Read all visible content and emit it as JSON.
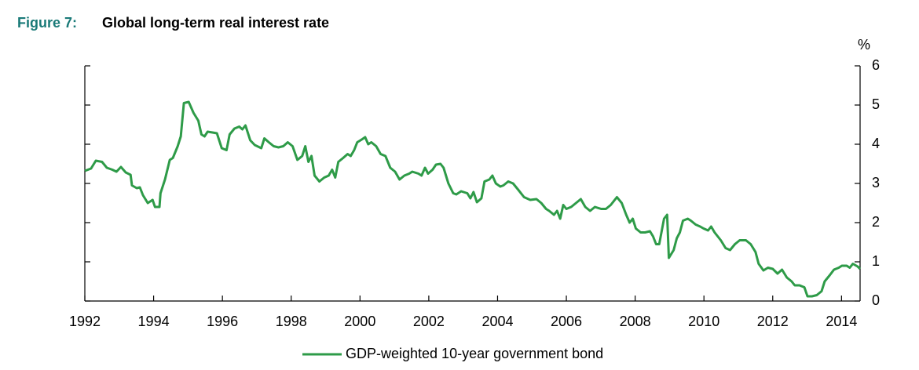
{
  "chart_data": {
    "type": "line",
    "figure_label": "Figure 7:",
    "title": "Global long-term real interest rate",
    "y_unit": "%",
    "x": [
      1992.0,
      1992.18,
      1992.32,
      1992.5,
      1992.64,
      1992.8,
      1992.92,
      1993.05,
      1993.19,
      1993.33,
      1993.37,
      1993.51,
      1993.6,
      1993.69,
      1993.83,
      1993.97,
      1994.04,
      1994.17,
      1994.2,
      1994.33,
      1994.47,
      1994.56,
      1994.7,
      1994.79,
      1994.88,
      1995.02,
      1995.16,
      1995.3,
      1995.39,
      1995.48,
      1995.57,
      1995.71,
      1995.84,
      1995.98,
      1996.12,
      1996.21,
      1996.35,
      1996.49,
      1996.58,
      1996.67,
      1996.81,
      1996.94,
      1997.13,
      1997.22,
      1997.35,
      1997.49,
      1997.63,
      1997.77,
      1997.9,
      1998.04,
      1998.18,
      1998.32,
      1998.41,
      1998.5,
      1998.59,
      1998.68,
      1998.82,
      1998.96,
      1999.09,
      1999.19,
      1999.28,
      1999.37,
      1999.51,
      1999.64,
      1999.73,
      1999.83,
      1999.92,
      2000.05,
      2000.15,
      2000.24,
      2000.33,
      2000.47,
      2000.6,
      2000.74,
      2000.88,
      2001.02,
      2001.15,
      2001.29,
      2001.43,
      2001.52,
      2001.7,
      2001.79,
      2001.89,
      2001.98,
      2002.11,
      2002.21,
      2002.34,
      2002.43,
      2002.57,
      2002.71,
      2002.8,
      2002.94,
      2003.12,
      2003.21,
      2003.3,
      2003.4,
      2003.53,
      2003.62,
      2003.76,
      2003.85,
      2003.95,
      2004.08,
      2004.17,
      2004.31,
      2004.45,
      2004.59,
      2004.77,
      2004.95,
      2005.13,
      2005.27,
      2005.41,
      2005.5,
      2005.64,
      2005.73,
      2005.82,
      2005.91,
      2006.0,
      2006.14,
      2006.28,
      2006.42,
      2006.55,
      2006.69,
      2006.83,
      2007.01,
      2007.15,
      2007.29,
      2007.47,
      2007.61,
      2007.74,
      2007.84,
      2007.93,
      2008.02,
      2008.16,
      2008.29,
      2008.43,
      2008.52,
      2008.61,
      2008.7,
      2008.84,
      2008.93,
      2008.98,
      2009.12,
      2009.21,
      2009.3,
      2009.39,
      2009.53,
      2009.62,
      2009.76,
      2009.89,
      2009.99,
      2010.12,
      2010.21,
      2010.31,
      2010.4,
      2010.49,
      2010.63,
      2010.76,
      2010.9,
      2011.04,
      2011.22,
      2011.36,
      2011.5,
      2011.59,
      2011.73,
      2011.86,
      2012.0,
      2012.14,
      2012.27,
      2012.41,
      2012.55,
      2012.64,
      2012.78,
      2012.92,
      2013.01,
      2013.14,
      2013.28,
      2013.42,
      2013.51,
      2013.65,
      2013.78,
      2013.92,
      2014.01,
      2014.15,
      2014.24,
      2014.33,
      2014.47,
      2014.54
    ],
    "series": [
      {
        "name": "GDP-weighted 10-year government bond",
        "color": "#2e9b48",
        "values": [
          3.32,
          3.38,
          3.58,
          3.55,
          3.4,
          3.35,
          3.3,
          3.42,
          3.28,
          3.22,
          2.95,
          2.88,
          2.9,
          2.7,
          2.5,
          2.58,
          2.4,
          2.4,
          2.75,
          3.1,
          3.6,
          3.65,
          3.95,
          4.2,
          5.05,
          5.08,
          4.8,
          4.6,
          4.25,
          4.2,
          4.32,
          4.3,
          4.28,
          3.9,
          3.85,
          4.25,
          4.4,
          4.45,
          4.38,
          4.48,
          4.1,
          3.98,
          3.9,
          4.15,
          4.05,
          3.95,
          3.92,
          3.95,
          4.05,
          3.95,
          3.6,
          3.7,
          3.95,
          3.55,
          3.7,
          3.2,
          3.05,
          3.15,
          3.2,
          3.35,
          3.15,
          3.55,
          3.65,
          3.75,
          3.7,
          3.85,
          4.05,
          4.12,
          4.18,
          4.0,
          4.05,
          3.95,
          3.75,
          3.7,
          3.4,
          3.3,
          3.1,
          3.2,
          3.25,
          3.3,
          3.25,
          3.2,
          3.4,
          3.25,
          3.35,
          3.48,
          3.5,
          3.4,
          3.0,
          2.75,
          2.72,
          2.8,
          2.75,
          2.62,
          2.78,
          2.52,
          2.62,
          3.05,
          3.1,
          3.2,
          3.0,
          2.92,
          2.95,
          3.05,
          3.0,
          2.85,
          2.65,
          2.58,
          2.6,
          2.5,
          2.35,
          2.3,
          2.2,
          2.3,
          2.1,
          2.45,
          2.35,
          2.4,
          2.5,
          2.6,
          2.4,
          2.3,
          2.4,
          2.35,
          2.35,
          2.45,
          2.65,
          2.5,
          2.2,
          2.0,
          2.1,
          1.85,
          1.75,
          1.75,
          1.78,
          1.65,
          1.45,
          1.45,
          2.1,
          2.2,
          1.1,
          1.3,
          1.6,
          1.75,
          2.05,
          2.1,
          2.05,
          1.95,
          1.9,
          1.85,
          1.8,
          1.9,
          1.75,
          1.65,
          1.55,
          1.35,
          1.3,
          1.45,
          1.55,
          1.55,
          1.45,
          1.25,
          0.95,
          0.78,
          0.85,
          0.82,
          0.7,
          0.8,
          0.6,
          0.5,
          0.4,
          0.4,
          0.35,
          0.12,
          0.12,
          0.15,
          0.25,
          0.5,
          0.65,
          0.8,
          0.85,
          0.9,
          0.9,
          0.85,
          0.95,
          0.88,
          0.82
        ]
      }
    ],
    "xlim": [
      1992,
      2014.54
    ],
    "xticks": [
      1992,
      1994,
      1996,
      1998,
      2000,
      2002,
      2004,
      2006,
      2008,
      2010,
      2012,
      2014
    ],
    "ylim": [
      0,
      6
    ],
    "yticks": [
      0,
      1,
      2,
      3,
      4,
      5,
      6
    ],
    "grid": false,
    "legend": "bottom"
  }
}
